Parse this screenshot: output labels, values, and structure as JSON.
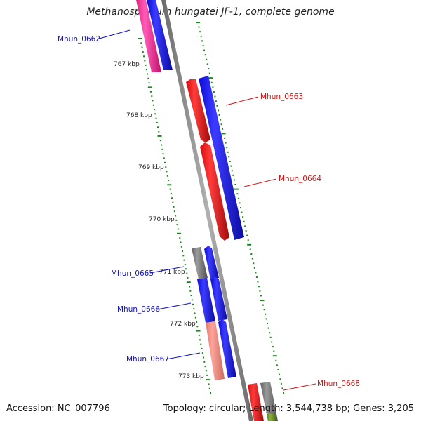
{
  "title": "Methanospirillum hungatei JF-1, complete genome",
  "accession": "Accession: NC_007796",
  "topology_line": "Topology: circular; Length: 3,544,738 bp; Genes: 3,205",
  "ticks": [
    "767 kbp",
    "768 kbp",
    "769 kbp",
    "770 kbp",
    "771 kbp",
    "772 kbp",
    "773 kbp"
  ],
  "gene_labels": [
    {
      "id": "g0662",
      "text": "Mhun_0662",
      "color": "#1010c8"
    },
    {
      "id": "g0663",
      "text": "Mhun_0663",
      "color": "#d21414"
    },
    {
      "id": "g0664",
      "text": "Mhun_0664",
      "color": "#d21414"
    },
    {
      "id": "g0665",
      "text": "Mhun_0665",
      "color": "#1010c8"
    },
    {
      "id": "g0666",
      "text": "Mhun_0666",
      "color": "#1010c8"
    },
    {
      "id": "g0667",
      "text": "Mhun_0667",
      "color": "#1010c8"
    },
    {
      "id": "g0668",
      "text": "Mhun_0668",
      "color": "#d21414"
    }
  ],
  "colors": {
    "backbone": "#888888",
    "tick": "#1a8a1a",
    "forward_cds": "#1414ff",
    "reverse_cds": "#ff1414",
    "rna": "#ff3ea5",
    "other": "#808080",
    "light_red": "#f08a80",
    "olive": "#6b8e23"
  }
}
